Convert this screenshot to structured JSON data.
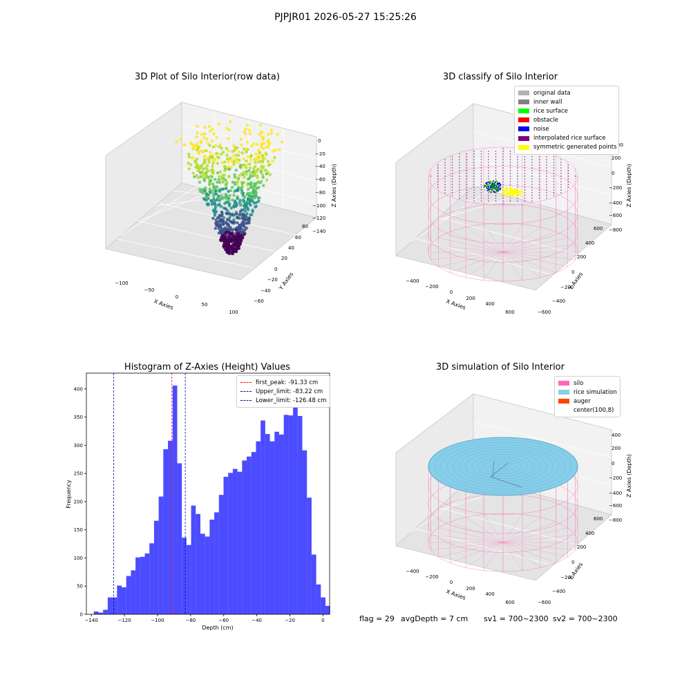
{
  "suptitle": "PJPJR01 2026-05-27 15:25:26",
  "colors": {
    "hist_bar": "#0000ff",
    "first_peak": "#ff0000",
    "limits": "#0000aa",
    "silo": "#ff69b4",
    "rice_simulation": "#87ceeb",
    "auger": "#ff4500"
  },
  "status": {
    "flag": "flag = 29",
    "avg_depth": "avgDepth = 7 cm",
    "sv1": "sv1 = 700~2300",
    "sv2": "sv2 = 700~2300"
  },
  "chart_data": [
    {
      "type": "scatter",
      "title": "3D Plot of Silo Interior(row data)",
      "xlabel": "X Axies",
      "ylabel": "Y Axies",
      "zlabel": "Z Axies (Depth)",
      "x_ticks": [
        "−100",
        "−50",
        "0",
        "50",
        "100"
      ],
      "y_ticks": [
        "−60",
        "−40",
        "−20",
        "0",
        "20",
        "40",
        "60",
        "80"
      ],
      "z_ticks": [
        "0",
        "−20",
        "−40",
        "−60",
        "−80",
        "−100",
        "−120",
        "−140"
      ],
      "colormap": "viridis"
    },
    {
      "type": "scatter",
      "title": "3D classify of Silo Interior",
      "xlabel": "X Axies",
      "ylabel": "Y Axies",
      "zlabel": "Z Axies (Depth)",
      "x_ticks": [
        "−400",
        "−200",
        "0",
        "200",
        "400",
        "600"
      ],
      "y_ticks": [
        "−600",
        "−400",
        "−200",
        "0",
        "200",
        "400",
        "600"
      ],
      "z_ticks": [
        "200",
        "0",
        "−200",
        "−400",
        "−600",
        "−800"
      ],
      "z_ticks_partial": "00",
      "legend": [
        {
          "label": "original data",
          "color": "#b3b3b3"
        },
        {
          "label": "inner wall",
          "color": "#808080"
        },
        {
          "label": "rice surface",
          "color": "#00ff00"
        },
        {
          "label": "obstacle",
          "color": "#ff0000"
        },
        {
          "label": "noise",
          "color": "#0000ff"
        },
        {
          "label": "interpolated rice surface",
          "color": "#800080"
        },
        {
          "label": "symmetric generated points",
          "color": "#ffff00"
        }
      ]
    },
    {
      "type": "bar",
      "title": "Histogram of Z-Axies (Height) Values",
      "xlabel": "Depth (cm)",
      "ylabel": "Frequency",
      "xlim": [
        -143,
        4
      ],
      "ylim": [
        0,
        428
      ],
      "x_ticks": [
        -140,
        -120,
        -100,
        -80,
        -60,
        -40,
        -20,
        0
      ],
      "y_ticks": [
        0,
        50,
        100,
        150,
        200,
        250,
        300,
        350,
        400
      ],
      "bin_start": -138.5,
      "bin_width": 2.8,
      "values": [
        5,
        3,
        8,
        30,
        30,
        51,
        48,
        68,
        78,
        101,
        102,
        108,
        126,
        166,
        209,
        293,
        308,
        406,
        268,
        136,
        123,
        193,
        178,
        143,
        138,
        168,
        181,
        212,
        244,
        251,
        258,
        253,
        273,
        280,
        288,
        307,
        344,
        320,
        307,
        324,
        319,
        354,
        353,
        369,
        352,
        291,
        207,
        106,
        53,
        30,
        15
      ],
      "lines": [
        {
          "label": "first_peak: -91.33 cm",
          "value": -91.33,
          "color": "#ff0000"
        },
        {
          "label": "Upper_limit: -83.22 cm",
          "value": -83.22,
          "color": "#0000aa"
        },
        {
          "label": "Lower_limit: -126.48 cm",
          "value": -126.48,
          "color": "#0000aa"
        }
      ]
    },
    {
      "type": "scatter",
      "title": "3D simulation of Silo Interior",
      "xlabel": "X Axies",
      "ylabel": "Y Axies",
      "zlabel": "Z Axies (Depth)",
      "x_ticks": [
        "−400",
        "−200",
        "0",
        "200",
        "400",
        "600"
      ],
      "y_ticks": [
        "−600",
        "−400",
        "−200",
        "0",
        "200",
        "400",
        "600"
      ],
      "z_ticks": [
        "400",
        "200",
        "0",
        "−200",
        "−400",
        "−600",
        "−800"
      ],
      "legend": [
        {
          "label": "silo",
          "color": "#ff69b4"
        },
        {
          "label": "rice simulation",
          "color": "#87ceeb"
        },
        {
          "label": "auger",
          "color": "#ff4500"
        },
        {
          "label": "center(100,8)",
          "color": "#ffffff"
        }
      ]
    }
  ]
}
